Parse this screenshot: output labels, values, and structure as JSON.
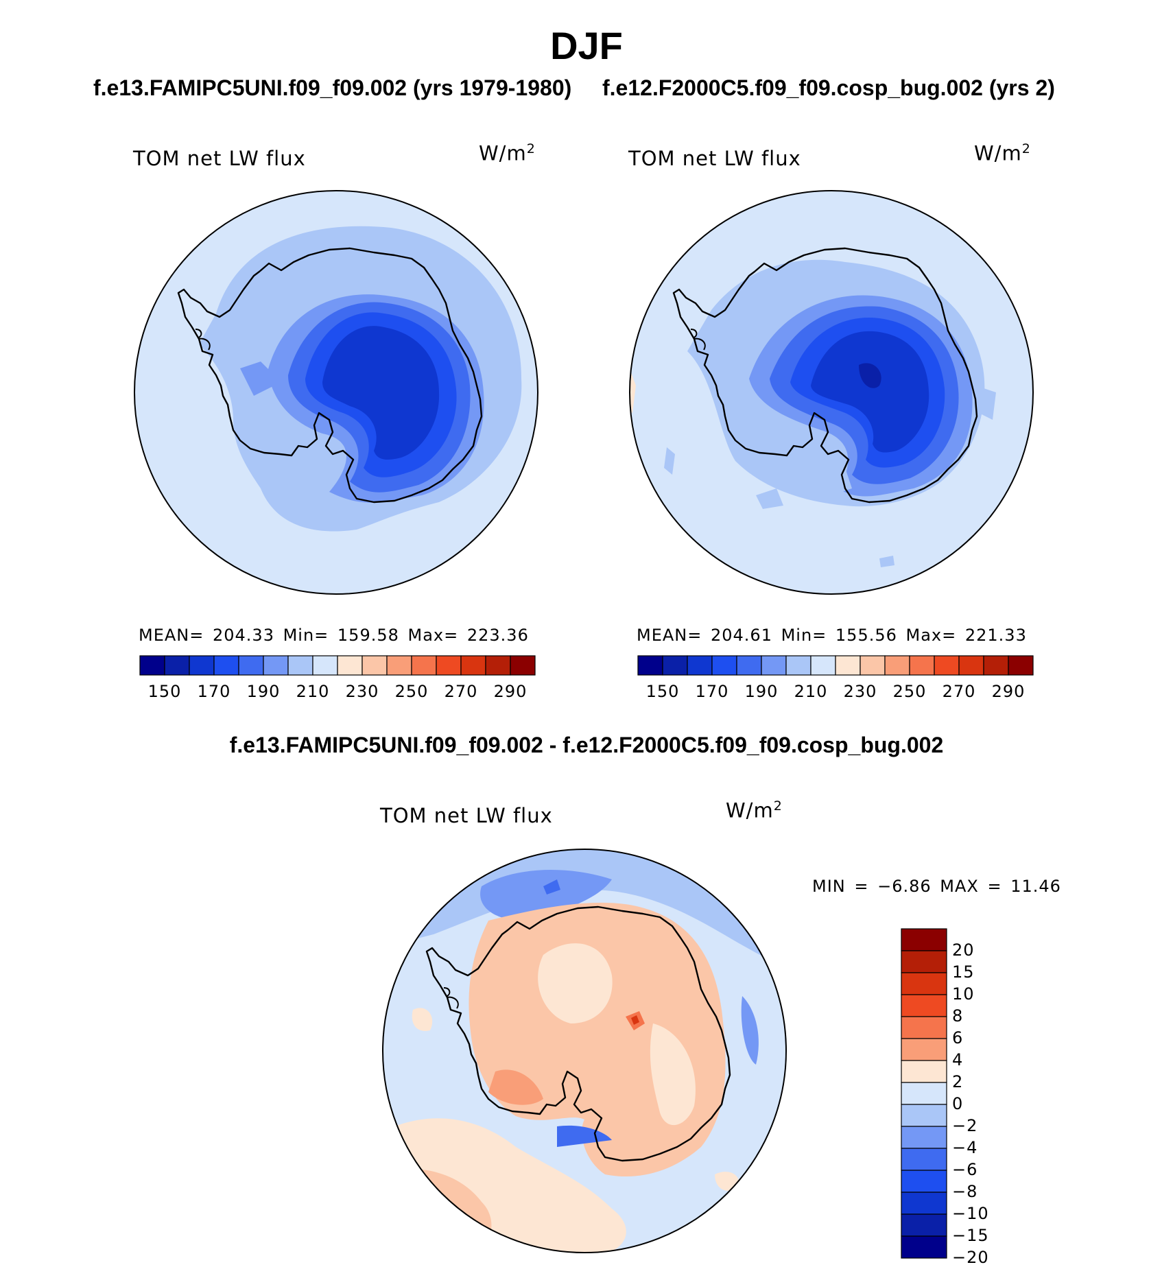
{
  "page": {
    "title": "DJF",
    "diff_title": "f.e13.FAMIPC5UNI.f09_f09.002 - f.e12.F2000C5.f09_f09.cosp_bug.002"
  },
  "panels": [
    {
      "case_title": "f.e13.FAMIPC5UNI.f09_f09.002 (yrs 1979-1980)",
      "variable": "TOM net LW flux",
      "units": "W/m",
      "units_exp": "2",
      "stats": "MEAN= 204.33   Min= 159.58   Max= 223.36"
    },
    {
      "case_title": "f.e12.F2000C5.f09_f09.cosp_bug.002 (yrs 2)",
      "variable": "TOM net LW flux",
      "units": "W/m",
      "units_exp": "2",
      "stats": "MEAN= 204.61   Min= 155.56   Max= 221.33"
    },
    {
      "variable": "TOM net LW flux",
      "units": "W/m",
      "units_exp": "2",
      "stats": "MIN =   −6.86  MAX =   11.46"
    }
  ],
  "colorbars": {
    "mean_field": {
      "ticks": [
        "150",
        "170",
        "190",
        "210",
        "230",
        "250",
        "270",
        "290"
      ],
      "colors": [
        "#00008b",
        "#0a20a8",
        "#0f37d0",
        "#1e4ff0",
        "#3f6bf0",
        "#7498f5",
        "#aac6f7",
        "#d6e6fb",
        "#fde6d3",
        "#fbc6a8",
        "#f99e78",
        "#f5744c",
        "#ee4a22",
        "#d93510",
        "#b41f07",
        "#8b0000"
      ]
    },
    "difference": {
      "ticks": [
        "20",
        "15",
        "10",
        "8",
        "6",
        "4",
        "2",
        "0",
        "−2",
        "−4",
        "−6",
        "−8",
        "−10",
        "−15",
        "−20"
      ],
      "colors": [
        "#8b0000",
        "#b41f07",
        "#d93510",
        "#ee4a22",
        "#f5744c",
        "#f99e78",
        "#fde6d3",
        "#d6e6fb",
        "#aac6f7",
        "#7498f5",
        "#3f6bf0",
        "#1e4ff0",
        "#0f37d0",
        "#0a20a8",
        "#00008b"
      ]
    }
  },
  "chart_data": {
    "type": "polar-stereographic contour maps (Southern Hemisphere)",
    "season": "DJF",
    "panels": [
      {
        "case": "f.e13.FAMIPC5UNI.f09_f09.002 (yrs 1979-1980)",
        "field": "TOM net LW flux",
        "units": "W/m2",
        "mean": 204.33,
        "min": 159.58,
        "max": 223.36,
        "contour_levels": [
          150,
          160,
          170,
          180,
          190,
          200,
          210,
          220,
          230,
          240,
          250,
          260,
          270,
          280,
          290
        ]
      },
      {
        "case": "f.e12.F2000C5.f09_f09.cosp_bug.002 (yrs 2)",
        "field": "TOM net LW flux",
        "units": "W/m2",
        "mean": 204.61,
        "min": 155.56,
        "max": 221.33,
        "contour_levels": [
          150,
          160,
          170,
          180,
          190,
          200,
          210,
          220,
          230,
          240,
          250,
          260,
          270,
          280,
          290
        ]
      },
      {
        "case": "difference",
        "field": "TOM net LW flux",
        "units": "W/m2",
        "min": -6.86,
        "max": 11.46,
        "contour_levels": [
          -20,
          -15,
          -10,
          -8,
          -6,
          -4,
          -2,
          0,
          2,
          4,
          6,
          8,
          10,
          15,
          20
        ]
      }
    ]
  }
}
